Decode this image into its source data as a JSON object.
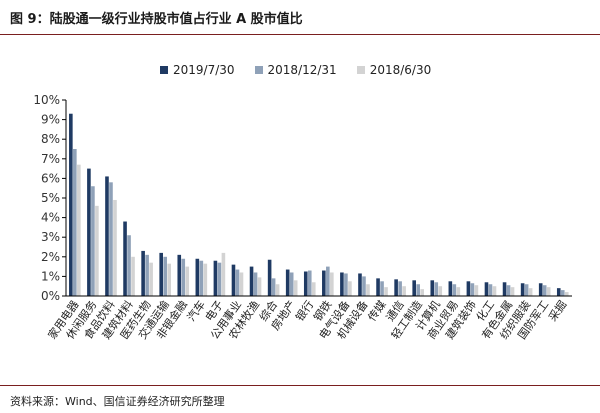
{
  "figure": {
    "title": "图 9：陆股通一级行业持股市值占行业 A 股市值比",
    "source": "资料来源：Wind、国信证券经济研究所整理"
  },
  "colors": {
    "series": [
      "#1f3a63",
      "#8fa1b8",
      "#d3d3d3"
    ],
    "axis": "#000000",
    "rule": "#7a1f1f"
  },
  "chart_data": {
    "type": "bar",
    "ylim": [
      0,
      10
    ],
    "yticks": [
      "0%",
      "1%",
      "2%",
      "3%",
      "4%",
      "5%",
      "6%",
      "7%",
      "8%",
      "9%",
      "10%"
    ],
    "grid": false,
    "legend_position": "top",
    "categories": [
      "家用电器",
      "休闲服务",
      "食品饮料",
      "建筑材料",
      "医药生物",
      "交通运输",
      "非银金融",
      "汽车",
      "电子",
      "公用事业",
      "农林牧渔",
      "综合",
      "房地产",
      "银行",
      "钢铁",
      "电气设备",
      "机械设备",
      "传媒",
      "通信",
      "轻工制造",
      "计算机",
      "商业贸易",
      "建筑装饰",
      "化工",
      "有色金属",
      "纺织服装",
      "国防军工",
      "采掘"
    ],
    "series": [
      {
        "name": "2019/7/30",
        "values": [
          9.3,
          6.5,
          6.1,
          3.8,
          2.3,
          2.2,
          2.1,
          1.9,
          1.8,
          1.6,
          1.5,
          1.85,
          1.35,
          1.25,
          1.3,
          1.2,
          1.15,
          0.9,
          0.85,
          0.8,
          0.8,
          0.75,
          0.75,
          0.7,
          0.7,
          0.65,
          0.65,
          0.4
        ]
      },
      {
        "name": "2018/12/31",
        "values": [
          7.5,
          5.6,
          5.8,
          3.1,
          2.1,
          2.0,
          1.9,
          1.8,
          1.7,
          1.35,
          1.2,
          0.9,
          1.2,
          1.3,
          1.5,
          1.15,
          1.0,
          0.75,
          0.75,
          0.6,
          0.7,
          0.6,
          0.65,
          0.6,
          0.55,
          0.6,
          0.55,
          0.3
        ]
      },
      {
        "name": "2018/6/30",
        "values": [
          6.7,
          4.6,
          4.9,
          2.0,
          1.7,
          1.65,
          1.5,
          1.65,
          2.2,
          1.2,
          0.95,
          0.6,
          0.8,
          0.7,
          1.2,
          0.75,
          0.6,
          0.45,
          0.5,
          0.35,
          0.5,
          0.45,
          0.55,
          0.5,
          0.45,
          0.4,
          0.45,
          0.2
        ]
      }
    ]
  }
}
